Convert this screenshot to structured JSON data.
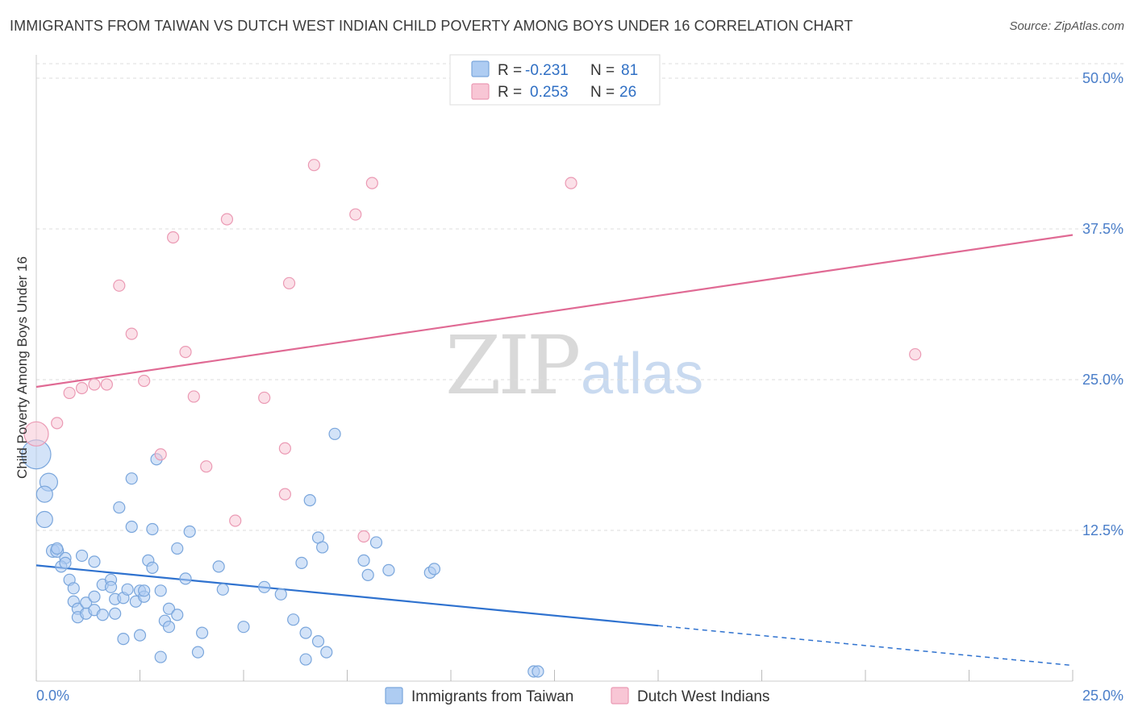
{
  "title": "IMMIGRANTS FROM TAIWAN VS DUTCH WEST INDIAN CHILD POVERTY AMONG BOYS UNDER 16 CORRELATION CHART",
  "source": "Source: ZipAtlas.com",
  "watermark": {
    "zip": "ZIP",
    "atlas": "atlas"
  },
  "colors": {
    "taiwan_fill": "#aeccf2",
    "taiwan_stroke": "#7aa6dc",
    "taiwan_line": "#2f72cf",
    "dutch_fill": "#f8c6d5",
    "dutch_stroke": "#eb9ab4",
    "dutch_line": "#e06a94",
    "grid": "#dddddd",
    "tick_text": "#4a7ec9"
  },
  "legend": {
    "rows": [
      {
        "r_label": "R =",
        "r_value": "-0.231",
        "n_label": "N =",
        "n_value": "81"
      },
      {
        "r_label": "R =",
        "r_value": "0.253",
        "n_label": "N =",
        "n_value": "26"
      }
    ]
  },
  "chart_data": {
    "type": "scatter",
    "title": "IMMIGRANTS FROM TAIWAN VS DUTCH WEST INDIAN CHILD POVERTY AMONG BOYS UNDER 16 CORRELATION CHART",
    "xlabel": "",
    "ylabel": "Child Poverty Among Boys Under 16",
    "xlim": [
      0,
      25
    ],
    "ylim": [
      0,
      50
    ],
    "x_tick_labels": [
      "0.0%",
      "25.0%"
    ],
    "y_ticks": [
      12.5,
      25.0,
      37.5,
      50.0
    ],
    "y_tick_labels": [
      "12.5%",
      "25.0%",
      "37.5%",
      "50.0%"
    ],
    "grid": true,
    "legend_position": "top-center",
    "series": [
      {
        "name": "Immigrants from Taiwan",
        "r": -0.231,
        "n": 81,
        "trend": {
          "x0": 0,
          "y0": 9.6,
          "x1": 15,
          "y1": 4.6,
          "dashed_to_x": 25,
          "dashed_to_y": 1.3
        },
        "points": [
          [
            0.0,
            18.8,
            36
          ],
          [
            0.3,
            16.5,
            22
          ],
          [
            0.2,
            15.5,
            20
          ],
          [
            0.2,
            13.4,
            20
          ],
          [
            0.4,
            10.8,
            16
          ],
          [
            0.5,
            10.8,
            16
          ],
          [
            0.5,
            11.0,
            14
          ],
          [
            0.7,
            10.2,
            14
          ],
          [
            1.1,
            10.4,
            14
          ],
          [
            1.4,
            9.9,
            14
          ],
          [
            0.6,
            9.5,
            14
          ],
          [
            0.8,
            8.4,
            14
          ],
          [
            0.7,
            9.8,
            14
          ],
          [
            0.9,
            7.7,
            14
          ],
          [
            0.9,
            6.6,
            14
          ],
          [
            1.0,
            6.0,
            14
          ],
          [
            1.0,
            5.3,
            14
          ],
          [
            1.2,
            5.6,
            14
          ],
          [
            1.2,
            6.5,
            14
          ],
          [
            1.4,
            5.9,
            14
          ],
          [
            1.4,
            7.0,
            14
          ],
          [
            1.6,
            5.5,
            14
          ],
          [
            1.6,
            8.0,
            14
          ],
          [
            1.8,
            8.4,
            14
          ],
          [
            1.8,
            7.8,
            14
          ],
          [
            1.9,
            6.8,
            14
          ],
          [
            1.9,
            5.6,
            14
          ],
          [
            2.1,
            3.5,
            14
          ],
          [
            2.1,
            6.9,
            14
          ],
          [
            2.2,
            7.6,
            14
          ],
          [
            2.0,
            14.4,
            14
          ],
          [
            2.3,
            12.8,
            14
          ],
          [
            2.3,
            16.8,
            14
          ],
          [
            2.5,
            7.5,
            14
          ],
          [
            2.4,
            6.6,
            14
          ],
          [
            2.5,
            3.8,
            14
          ],
          [
            2.6,
            7.0,
            14
          ],
          [
            2.6,
            7.5,
            14
          ],
          [
            2.7,
            10.0,
            14
          ],
          [
            2.8,
            9.4,
            14
          ],
          [
            2.8,
            12.6,
            14
          ],
          [
            2.9,
            18.4,
            14
          ],
          [
            3.0,
            2.0,
            14
          ],
          [
            3.0,
            7.5,
            14
          ],
          [
            3.1,
            5.0,
            14
          ],
          [
            3.2,
            4.5,
            14
          ],
          [
            3.2,
            6.0,
            14
          ],
          [
            3.4,
            5.5,
            14
          ],
          [
            3.4,
            11.0,
            14
          ],
          [
            3.6,
            8.5,
            14
          ],
          [
            3.7,
            12.4,
            14
          ],
          [
            3.9,
            2.4,
            14
          ],
          [
            4.0,
            4.0,
            14
          ],
          [
            4.4,
            9.5,
            14
          ],
          [
            4.5,
            7.6,
            14
          ],
          [
            5.0,
            4.5,
            14
          ],
          [
            5.5,
            7.8,
            14
          ],
          [
            5.9,
            7.2,
            14
          ],
          [
            6.2,
            5.1,
            14
          ],
          [
            6.4,
            9.8,
            14
          ],
          [
            6.5,
            1.8,
            14
          ],
          [
            6.5,
            4.0,
            14
          ],
          [
            6.6,
            15.0,
            14
          ],
          [
            6.8,
            11.9,
            14
          ],
          [
            6.8,
            3.3,
            14
          ],
          [
            6.9,
            11.1,
            14
          ],
          [
            7.0,
            2.4,
            14
          ],
          [
            7.2,
            20.5,
            14
          ],
          [
            7.9,
            10.0,
            14
          ],
          [
            8.0,
            8.8,
            14
          ],
          [
            8.2,
            11.5,
            14
          ],
          [
            8.5,
            9.2,
            14
          ],
          [
            9.5,
            9.0,
            14
          ],
          [
            9.6,
            9.3,
            14
          ],
          [
            12.0,
            0.8,
            14
          ],
          [
            12.1,
            0.8,
            14
          ]
        ]
      },
      {
        "name": "Dutch West Indians",
        "r": 0.253,
        "n": 26,
        "trend": {
          "x0": 0,
          "y0": 24.4,
          "x1": 25,
          "y1": 37.0
        },
        "points": [
          [
            0.0,
            20.5,
            30
          ],
          [
            0.5,
            21.4,
            14
          ],
          [
            0.8,
            23.9,
            14
          ],
          [
            1.1,
            24.3,
            14
          ],
          [
            1.4,
            24.6,
            14
          ],
          [
            1.7,
            24.6,
            14
          ],
          [
            2.0,
            32.8,
            14
          ],
          [
            2.3,
            28.8,
            14
          ],
          [
            2.6,
            24.9,
            14
          ],
          [
            3.0,
            18.8,
            14
          ],
          [
            3.3,
            36.8,
            14
          ],
          [
            3.6,
            27.3,
            14
          ],
          [
            3.8,
            23.6,
            14
          ],
          [
            4.1,
            17.8,
            14
          ],
          [
            4.6,
            38.3,
            14
          ],
          [
            4.8,
            13.3,
            14
          ],
          [
            5.5,
            23.5,
            14
          ],
          [
            6.0,
            15.5,
            14
          ],
          [
            6.0,
            19.3,
            14
          ],
          [
            6.1,
            33.0,
            14
          ],
          [
            6.7,
            42.8,
            14
          ],
          [
            7.7,
            38.7,
            14
          ],
          [
            7.9,
            12.0,
            14
          ],
          [
            8.1,
            41.3,
            14
          ],
          [
            12.9,
            41.3,
            14
          ],
          [
            21.2,
            27.1,
            14
          ]
        ]
      }
    ]
  }
}
